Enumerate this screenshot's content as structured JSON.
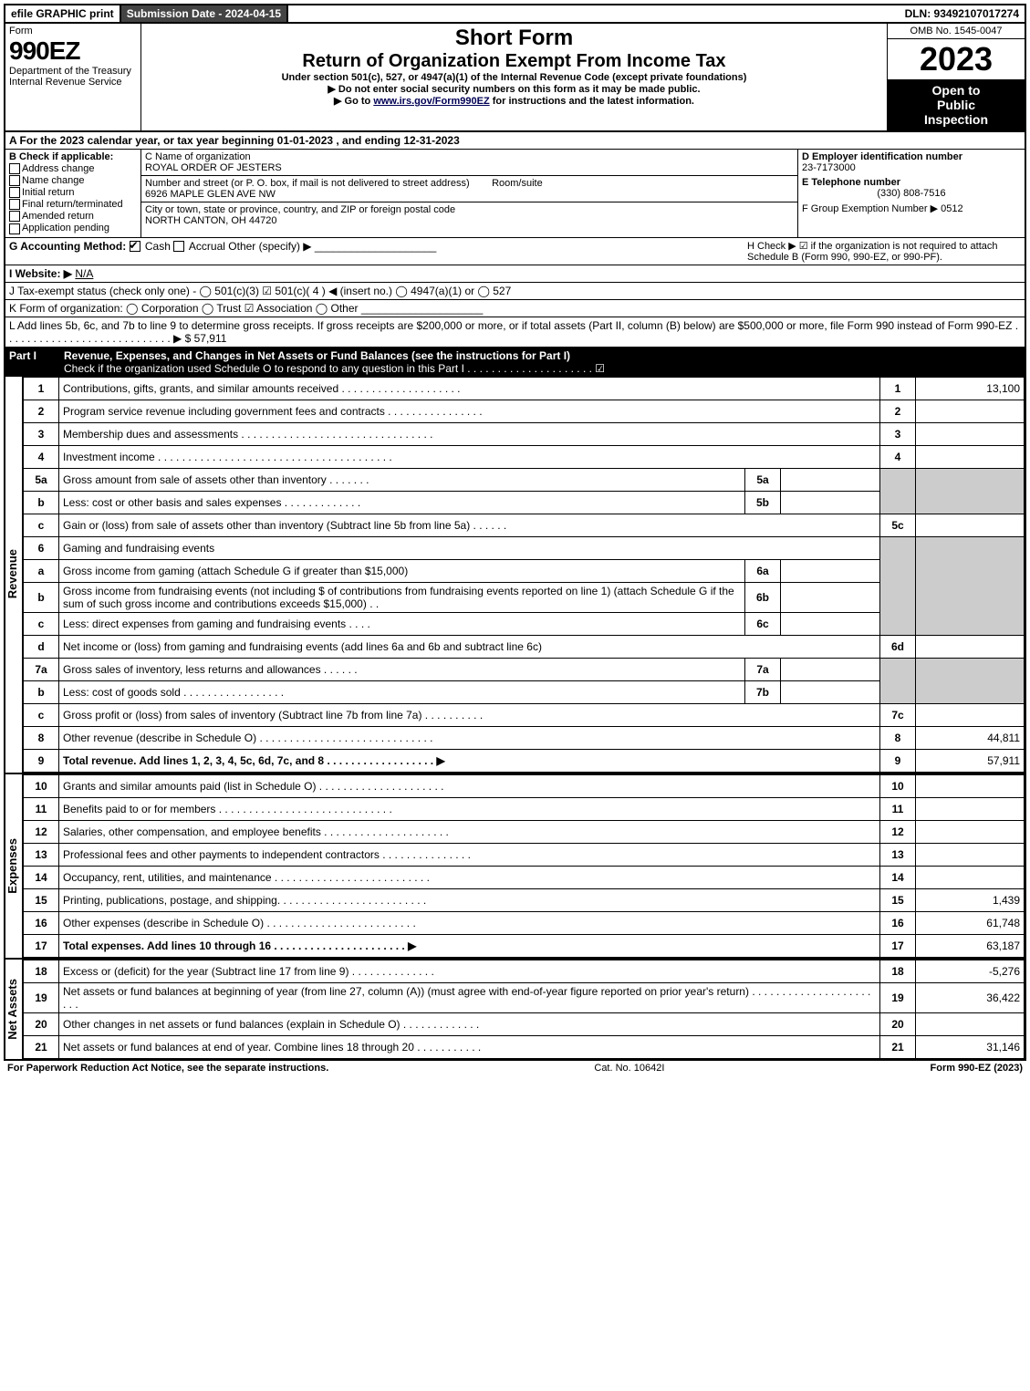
{
  "top": {
    "efile": "efile GRAPHIC print",
    "submission": "Submission Date - 2024-04-15",
    "dln": "DLN: 93492107017274"
  },
  "header": {
    "form_label": "Form",
    "form_number": "990EZ",
    "dept1": "Department of the Treasury",
    "dept2": "Internal Revenue Service",
    "title_short": "Short Form",
    "title_main": "Return of Organization Exempt From Income Tax",
    "subtitle": "Under section 501(c), 527, or 4947(a)(1) of the Internal Revenue Code (except private foundations)",
    "note1": "▶ Do not enter social security numbers on this form as it may be made public.",
    "note2_pre": "▶ Go to ",
    "note2_link": "www.irs.gov/Form990EZ",
    "note2_post": " for instructions and the latest information.",
    "omb": "OMB No. 1545-0047",
    "year": "2023",
    "open1": "Open to",
    "open2": "Public",
    "open3": "Inspection"
  },
  "A": {
    "text": "A  For the 2023 calendar year, or tax year beginning 01-01-2023 , and ending 12-31-2023"
  },
  "B": {
    "label": "B  Check if applicable:",
    "opts": [
      "Address change",
      "Name change",
      "Initial return",
      "Final return/terminated",
      "Amended return",
      "Application pending"
    ]
  },
  "C": {
    "name_label": "C Name of organization",
    "name": "ROYAL ORDER OF JESTERS",
    "addr_label": "Number and street (or P. O. box, if mail is not delivered to street address)",
    "room_label": "Room/suite",
    "addr": "6926 MAPLE GLEN AVE NW",
    "city_label": "City or town, state or province, country, and ZIP or foreign postal code",
    "city": "NORTH CANTON, OH  44720"
  },
  "D": {
    "label": "D Employer identification number",
    "val": "23-7173000"
  },
  "E": {
    "label": "E Telephone number",
    "val": "(330) 808-7516"
  },
  "F": {
    "label": "F Group Exemption Number  ▶ 0512"
  },
  "G": {
    "label": "G Accounting Method:",
    "cash": "Cash",
    "accrual": "Accrual",
    "other": "Other (specify) ▶"
  },
  "H": {
    "text": "H  Check ▶ ☑ if the organization is not required to attach Schedule B (Form 990, 990-EZ, or 990-PF)."
  },
  "I": {
    "label": "I Website: ▶",
    "val": "N/A"
  },
  "J": {
    "label": "J Tax-exempt status (check only one) -  ◯ 501(c)(3)  ☑ 501(c)( 4 ) ◀ (insert no.)  ◯ 4947(a)(1) or  ◯ 527"
  },
  "K": {
    "label": "K Form of organization:  ◯ Corporation  ◯ Trust  ☑ Association  ◯ Other"
  },
  "L": {
    "label": "L Add lines 5b, 6c, and 7b to line 9 to determine gross receipts. If gross receipts are $200,000 or more, or if total assets (Part II, column (B) below) are $500,000 or more, file Form 990 instead of Form 990-EZ  . . . . . . . . . . . . . . . . . . . . . . . . . . . .  ▶ $ 57,911"
  },
  "part1": {
    "label": "Part I",
    "title": "Revenue, Expenses, and Changes in Net Assets or Fund Balances (see the instructions for Part I)",
    "check": "Check if the organization used Schedule O to respond to any question in this Part I . . . . . . . . . . . . . . . . . . . . .  ☑"
  },
  "vert": {
    "rev": "Revenue",
    "exp": "Expenses",
    "net": "Net Assets"
  },
  "lines": {
    "l1": {
      "n": "1",
      "d": "Contributions, gifts, grants, and similar amounts received . . . . . . . . . . . . . . . . . . . .",
      "r": "1",
      "v": "13,100"
    },
    "l2": {
      "n": "2",
      "d": "Program service revenue including government fees and contracts . . . . . . . . . . . . . . . .",
      "r": "2",
      "v": ""
    },
    "l3": {
      "n": "3",
      "d": "Membership dues and assessments . . . . . . . . . . . . . . . . . . . . . . . . . . . . . . . .",
      "r": "3",
      "v": ""
    },
    "l4": {
      "n": "4",
      "d": "Investment income . . . . . . . . . . . . . . . . . . . . . . . . . . . . . . . . . . . . . . .",
      "r": "4",
      "v": ""
    },
    "l5a": {
      "n": "5a",
      "d": "Gross amount from sale of assets other than inventory . . . . . . .",
      "s": "5a"
    },
    "l5b": {
      "n": "b",
      "d": "Less: cost or other basis and sales expenses . . . . . . . . . . . . .",
      "s": "5b"
    },
    "l5c": {
      "n": "c",
      "d": "Gain or (loss) from sale of assets other than inventory (Subtract line 5b from line 5a) . . . . . .",
      "r": "5c",
      "v": ""
    },
    "l6": {
      "n": "6",
      "d": "Gaming and fundraising events"
    },
    "l6a": {
      "n": "a",
      "d": "Gross income from gaming (attach Schedule G if greater than $15,000)",
      "s": "6a"
    },
    "l6b": {
      "n": "b",
      "d": "Gross income from fundraising events (not including $                    of contributions from fundraising events reported on line 1) (attach Schedule G if the sum of such gross income and contributions exceeds $15,000)    . .",
      "s": "6b"
    },
    "l6c": {
      "n": "c",
      "d": "Less: direct expenses from gaming and fundraising events    . . . .",
      "s": "6c"
    },
    "l6d": {
      "n": "d",
      "d": "Net income or (loss) from gaming and fundraising events (add lines 6a and 6b and subtract line 6c)",
      "r": "6d",
      "v": ""
    },
    "l7a": {
      "n": "7a",
      "d": "Gross sales of inventory, less returns and allowances . . . . . .",
      "s": "7a"
    },
    "l7b": {
      "n": "b",
      "d": "Less: cost of goods sold         . . . . . . . . . . . . . . . . .",
      "s": "7b"
    },
    "l7c": {
      "n": "c",
      "d": "Gross profit or (loss) from sales of inventory (Subtract line 7b from line 7a) . . . . . . . . . .",
      "r": "7c",
      "v": ""
    },
    "l8": {
      "n": "8",
      "d": "Other revenue (describe in Schedule O) . . . . . . . . . . . . . . . . . . . . . . . . . . . . .",
      "r": "8",
      "v": "44,811"
    },
    "l9": {
      "n": "9",
      "d": "Total revenue. Add lines 1, 2, 3, 4, 5c, 6d, 7c, and 8  . . . . . . . . . . . . . . . . . .   ▶",
      "r": "9",
      "v": "57,911"
    },
    "l10": {
      "n": "10",
      "d": "Grants and similar amounts paid (list in Schedule O) . . . . . . . . . . . . . . . . . . . . .",
      "r": "10",
      "v": ""
    },
    "l11": {
      "n": "11",
      "d": "Benefits paid to or for members      . . . . . . . . . . . . . . . . . . . . . . . . . . . . .",
      "r": "11",
      "v": ""
    },
    "l12": {
      "n": "12",
      "d": "Salaries, other compensation, and employee benefits . . . . . . . . . . . . . . . . . . . . .",
      "r": "12",
      "v": ""
    },
    "l13": {
      "n": "13",
      "d": "Professional fees and other payments to independent contractors . . . . . . . . . . . . . . .",
      "r": "13",
      "v": ""
    },
    "l14": {
      "n": "14",
      "d": "Occupancy, rent, utilities, and maintenance . . . . . . . . . . . . . . . . . . . . . . . . . .",
      "r": "14",
      "v": ""
    },
    "l15": {
      "n": "15",
      "d": "Printing, publications, postage, and shipping. . . . . . . . . . . . . . . . . . . . . . . . .",
      "r": "15",
      "v": "1,439"
    },
    "l16": {
      "n": "16",
      "d": "Other expenses (describe in Schedule O)     . . . . . . . . . . . . . . . . . . . . . . . . .",
      "r": "16",
      "v": "61,748"
    },
    "l17": {
      "n": "17",
      "d": "Total expenses. Add lines 10 through 16     . . . . . . . . . . . . . . . . . . . . . .   ▶",
      "r": "17",
      "v": "63,187"
    },
    "l18": {
      "n": "18",
      "d": "Excess or (deficit) for the year (Subtract line 17 from line 9)       . . . . . . . . . . . . . .",
      "r": "18",
      "v": "-5,276"
    },
    "l19": {
      "n": "19",
      "d": "Net assets or fund balances at beginning of year (from line 27, column (A)) (must agree with end-of-year figure reported on prior year's return) . . . . . . . . . . . . . . . . . . . . . . .",
      "r": "19",
      "v": "36,422"
    },
    "l20": {
      "n": "20",
      "d": "Other changes in net assets or fund balances (explain in Schedule O) . . . . . . . . . . . . .",
      "r": "20",
      "v": ""
    },
    "l21": {
      "n": "21",
      "d": "Net assets or fund balances at end of year. Combine lines 18 through 20 . . . . . . . . . . .",
      "r": "21",
      "v": "31,146"
    }
  },
  "footer": {
    "left": "For Paperwork Reduction Act Notice, see the separate instructions.",
    "mid": "Cat. No. 10642I",
    "right": "Form 990-EZ (2023)"
  }
}
